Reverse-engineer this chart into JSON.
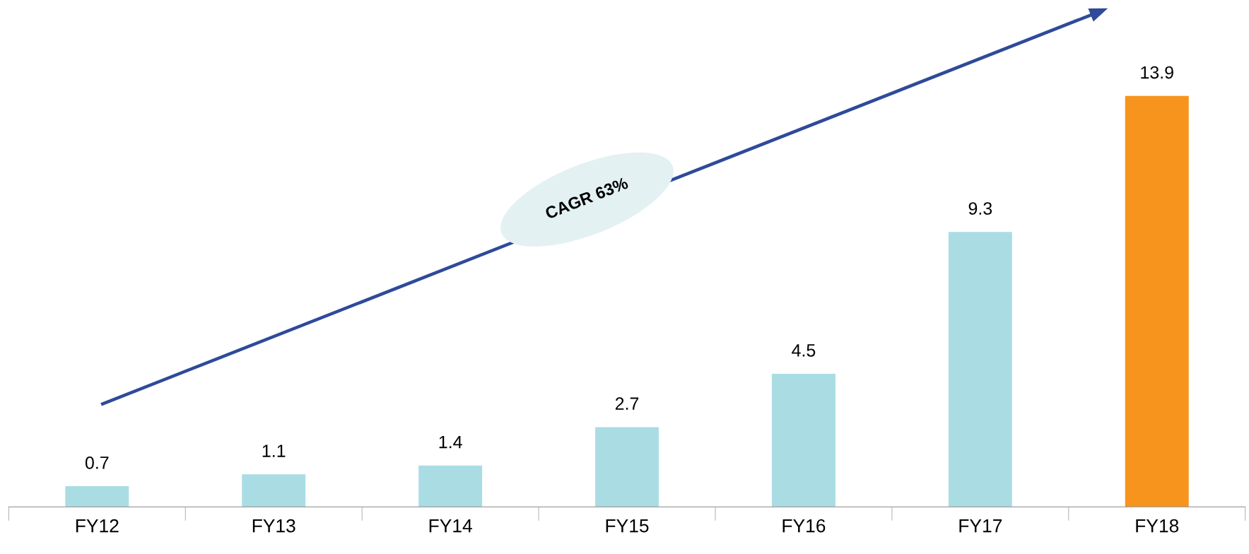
{
  "chart_data": {
    "type": "bar",
    "categories": [
      "FY12",
      "FY13",
      "FY14",
      "FY15",
      "FY16",
      "FY17",
      "FY18"
    ],
    "values": [
      0.7,
      1.1,
      1.4,
      2.7,
      4.5,
      9.3,
      13.9
    ],
    "colors": [
      "#aadde3",
      "#aadde3",
      "#aadde3",
      "#aadde3",
      "#aadde3",
      "#aadde3",
      "#f7941d"
    ],
    "data_labels": true,
    "tick_labels": "x",
    "grid": false,
    "annotations": [
      "CAGR 63%"
    ]
  }
}
